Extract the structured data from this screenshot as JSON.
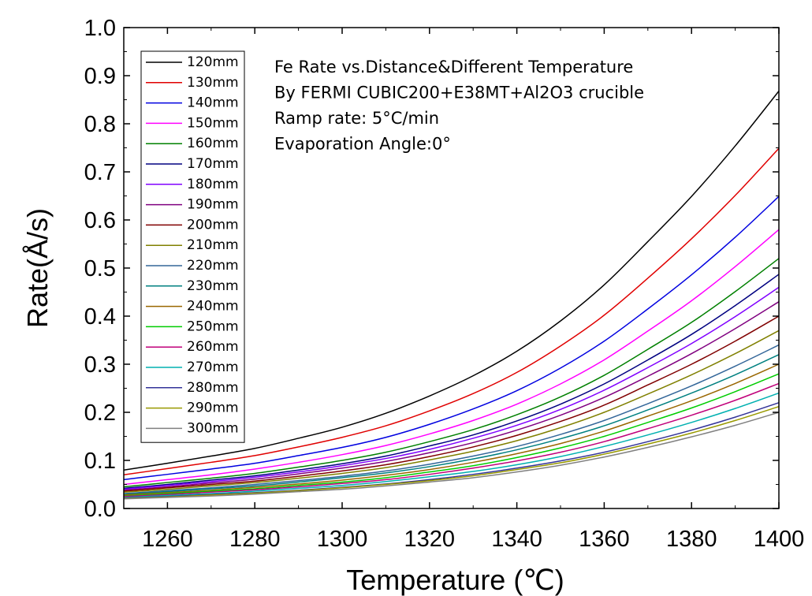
{
  "chart_data": {
    "type": "line",
    "xlabel": "Temperature (℃)",
    "ylabel": "Rate(Å/s)",
    "xlim": [
      1250,
      1400
    ],
    "ylim": [
      0.0,
      1.0
    ],
    "x_ticks": [
      "1260",
      "1280",
      "1300",
      "1320",
      "1340",
      "1360",
      "1380",
      "1400"
    ],
    "y_ticks": [
      "0.0",
      "0.1",
      "0.2",
      "0.3",
      "0.4",
      "0.5",
      "0.6",
      "0.7",
      "0.8",
      "0.9",
      "1.0"
    ],
    "grid": false,
    "legend_position": "top-left",
    "annotations": [
      "Fe Rate vs.Distance&Different Temperature",
      "By FERMI CUBIC200+E38MT+Al2O3 crucible",
      "Ramp rate:  5°C/min",
      "Evaporation Angle:0°"
    ],
    "x": [
      1250,
      1260,
      1270,
      1280,
      1290,
      1300,
      1310,
      1320,
      1330,
      1340,
      1350,
      1360,
      1370,
      1380,
      1390,
      1400
    ],
    "series": [
      {
        "name": "120mm",
        "color": "#000000",
        "values": [
          0.08,
          0.094,
          0.109,
          0.125,
          0.146,
          0.169,
          0.198,
          0.234,
          0.276,
          0.327,
          0.39,
          0.465,
          0.555,
          0.649,
          0.754,
          0.868
        ]
      },
      {
        "name": "130mm",
        "color": "#e00000",
        "values": [
          0.07,
          0.083,
          0.096,
          0.11,
          0.128,
          0.148,
          0.172,
          0.203,
          0.239,
          0.283,
          0.338,
          0.402,
          0.479,
          0.561,
          0.651,
          0.749
        ]
      },
      {
        "name": "140mm",
        "color": "#0000e0",
        "values": [
          0.06,
          0.071,
          0.082,
          0.094,
          0.11,
          0.127,
          0.148,
          0.175,
          0.207,
          0.245,
          0.292,
          0.348,
          0.415,
          0.486,
          0.564,
          0.649
        ]
      },
      {
        "name": "150mm",
        "color": "#ff00ff",
        "values": [
          0.05,
          0.06,
          0.07,
          0.082,
          0.096,
          0.112,
          0.131,
          0.155,
          0.183,
          0.217,
          0.259,
          0.309,
          0.369,
          0.432,
          0.503,
          0.58
        ]
      },
      {
        "name": "160mm",
        "color": "#008000",
        "values": [
          0.045,
          0.054,
          0.063,
          0.073,
          0.086,
          0.1,
          0.117,
          0.139,
          0.164,
          0.195,
          0.232,
          0.277,
          0.331,
          0.387,
          0.451,
          0.52
        ]
      },
      {
        "name": "170mm",
        "color": "#000080",
        "values": [
          0.042,
          0.05,
          0.059,
          0.068,
          0.08,
          0.093,
          0.109,
          0.13,
          0.153,
          0.182,
          0.217,
          0.259,
          0.309,
          0.362,
          0.422,
          0.487
        ]
      },
      {
        "name": "180mm",
        "color": "#8000ff",
        "values": [
          0.04,
          0.048,
          0.056,
          0.065,
          0.076,
          0.089,
          0.104,
          0.123,
          0.146,
          0.173,
          0.206,
          0.246,
          0.293,
          0.343,
          0.399,
          0.46
        ]
      },
      {
        "name": "190mm",
        "color": "#800080",
        "values": [
          0.038,
          0.045,
          0.053,
          0.061,
          0.072,
          0.084,
          0.098,
          0.116,
          0.137,
          0.163,
          0.194,
          0.231,
          0.275,
          0.322,
          0.374,
          0.43
        ]
      },
      {
        "name": "200mm",
        "color": "#800000",
        "values": [
          0.036,
          0.043,
          0.05,
          0.057,
          0.067,
          0.078,
          0.091,
          0.108,
          0.128,
          0.152,
          0.181,
          0.215,
          0.257,
          0.3,
          0.348,
          0.4
        ]
      },
      {
        "name": "210mm",
        "color": "#808000",
        "values": [
          0.034,
          0.04,
          0.047,
          0.054,
          0.063,
          0.073,
          0.085,
          0.101,
          0.119,
          0.141,
          0.168,
          0.2,
          0.238,
          0.278,
          0.322,
          0.37
        ]
      },
      {
        "name": "220mm",
        "color": "#336699",
        "values": [
          0.031,
          0.037,
          0.043,
          0.05,
          0.058,
          0.067,
          0.078,
          0.092,
          0.109,
          0.129,
          0.154,
          0.183,
          0.218,
          0.255,
          0.296,
          0.34
        ]
      },
      {
        "name": "230mm",
        "color": "#008080",
        "values": [
          0.03,
          0.035,
          0.041,
          0.047,
          0.055,
          0.064,
          0.074,
          0.087,
          0.103,
          0.122,
          0.145,
          0.172,
          0.205,
          0.24,
          0.278,
          0.32
        ]
      },
      {
        "name": "240mm",
        "color": "#996600",
        "values": [
          0.028,
          0.033,
          0.038,
          0.044,
          0.051,
          0.059,
          0.069,
          0.081,
          0.096,
          0.114,
          0.135,
          0.161,
          0.192,
          0.224,
          0.26,
          0.3
        ]
      },
      {
        "name": "250mm",
        "color": "#00cc00",
        "values": [
          0.026,
          0.031,
          0.036,
          0.041,
          0.048,
          0.055,
          0.064,
          0.076,
          0.089,
          0.106,
          0.126,
          0.15,
          0.179,
          0.209,
          0.243,
          0.28
        ]
      },
      {
        "name": "260mm",
        "color": "#c0007a",
        "values": [
          0.025,
          0.029,
          0.034,
          0.039,
          0.045,
          0.052,
          0.06,
          0.071,
          0.084,
          0.099,
          0.117,
          0.139,
          0.166,
          0.194,
          0.225,
          0.26
        ]
      },
      {
        "name": "270mm",
        "color": "#00b0b0",
        "values": [
          0.023,
          0.027,
          0.031,
          0.036,
          0.042,
          0.048,
          0.056,
          0.066,
          0.077,
          0.091,
          0.108,
          0.129,
          0.153,
          0.179,
          0.208,
          0.24
        ]
      },
      {
        "name": "280mm",
        "color": "#333399",
        "values": [
          0.022,
          0.025,
          0.029,
          0.033,
          0.038,
          0.044,
          0.051,
          0.06,
          0.071,
          0.084,
          0.099,
          0.117,
          0.139,
          0.163,
          0.19,
          0.22
        ]
      },
      {
        "name": "290mm",
        "color": "#999900",
        "values": [
          0.021,
          0.024,
          0.028,
          0.032,
          0.037,
          0.043,
          0.05,
          0.058,
          0.068,
          0.081,
          0.095,
          0.113,
          0.134,
          0.157,
          0.183,
          0.212
        ]
      },
      {
        "name": "300mm",
        "color": "#808080",
        "values": [
          0.02,
          0.023,
          0.026,
          0.03,
          0.035,
          0.04,
          0.047,
          0.055,
          0.064,
          0.076,
          0.09,
          0.107,
          0.127,
          0.149,
          0.173,
          0.2
        ]
      }
    ]
  }
}
